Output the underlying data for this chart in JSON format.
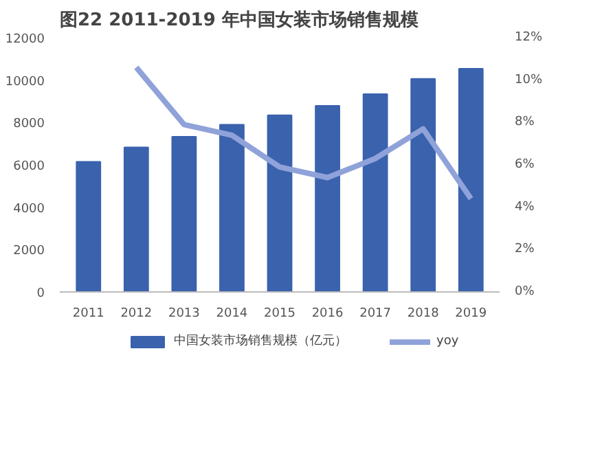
{
  "chart_data": {
    "type": "bar",
    "title": "图22      2011-2019 年中国女装市场销售规模",
    "categories": [
      "2011",
      "2012",
      "2013",
      "2014",
      "2015",
      "2016",
      "2017",
      "2018",
      "2019"
    ],
    "series": [
      {
        "name": "中国女装市场销售规模（亿元）",
        "color": "#3a62ad",
        "values": [
          6150,
          6830,
          7330,
          7900,
          8340,
          8790,
          9340,
          10060,
          10540
        ]
      },
      {
        "name": "yoy",
        "type": "line",
        "axis": "y2",
        "color": "#8fa2d9",
        "values": [
          null,
          10.6,
          7.9,
          7.4,
          5.9,
          5.4,
          6.3,
          7.7,
          4.4
        ]
      }
    ],
    "ylim": [
      0,
      12000
    ],
    "yticks": [
      0,
      2000,
      4000,
      6000,
      8000,
      10000,
      12000
    ],
    "y2lim": [
      0,
      12
    ],
    "y2ticks": [
      {
        "value": 0,
        "label": "0%"
      },
      {
        "value": 2,
        "label": "2%"
      },
      {
        "value": 4,
        "label": "4%"
      },
      {
        "value": 6,
        "label": "6%"
      },
      {
        "value": 8,
        "label": "8%"
      },
      {
        "value": 10,
        "label": "10%"
      },
      {
        "value": 12,
        "label": "12%"
      }
    ],
    "grid": false,
    "legend": "bottom"
  }
}
